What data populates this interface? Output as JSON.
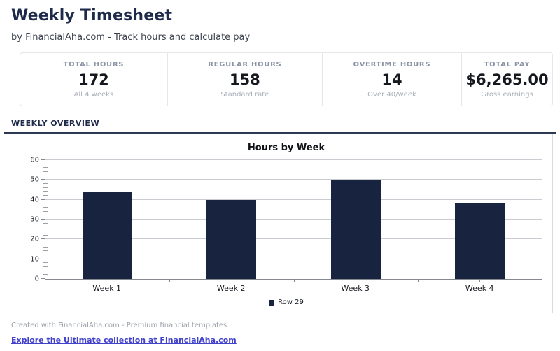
{
  "header": {
    "title": "Weekly Timesheet",
    "subtitle": "by FinancialAha.com - Track hours and calculate pay"
  },
  "stats": [
    {
      "label": "TOTAL HOURS",
      "value": "172",
      "sub": "All 4 weeks"
    },
    {
      "label": "REGULAR HOURS",
      "value": "158",
      "sub": "Standard rate"
    },
    {
      "label": "OVERTIME HOURS",
      "value": "14",
      "sub": "Over 40/week"
    },
    {
      "label": "TOTAL PAY",
      "value": "$6,265.00",
      "sub": "Gross earnings"
    }
  ],
  "section": {
    "title": "WEEKLY OVERVIEW"
  },
  "chart_data": {
    "type": "bar",
    "title": "Hours by Week",
    "categories": [
      "Week 1",
      "Week 2",
      "Week 3",
      "Week 4"
    ],
    "series": [
      {
        "name": "Row 29",
        "values": [
          44,
          40,
          50,
          38
        ]
      }
    ],
    "xlabel": "",
    "ylabel": "",
    "ylim": [
      0,
      60
    ],
    "ytick_step": 10,
    "minor_tick_step": 2,
    "grid": true,
    "legend_position": "bottom",
    "bar_color": "#17233f"
  },
  "footer": {
    "credit": "Created with FinancialAha.com - Premium financial templates",
    "link": "Explore the Ultimate collection at FinancialAha.com"
  },
  "colors": {
    "accent": "#1e2a4a",
    "rule": "#2b3954",
    "bar": "#17233f",
    "link": "#4141cc"
  }
}
